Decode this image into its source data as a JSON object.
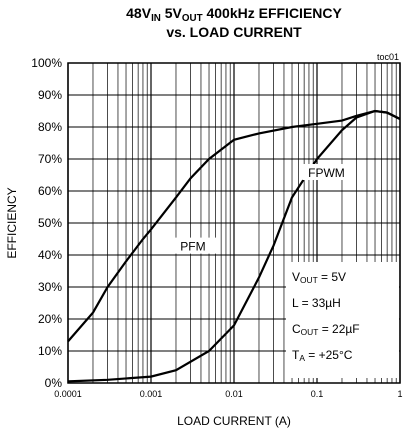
{
  "chart_data": {
    "type": "line",
    "title_lines": [
      [
        {
          "text": "48V"
        },
        {
          "text": "IN",
          "sub": true
        },
        {
          "text": " 5V"
        },
        {
          "text": "OUT",
          "sub": true
        },
        {
          "text": " 400kHz EFFICIENCY"
        }
      ],
      [
        {
          "text": "vs. LOAD CURRENT"
        }
      ]
    ],
    "tag": "toc01",
    "xlabel": "LOAD CURRENT (A)",
    "ylabel": "EFFICIENCY",
    "xscale": "log",
    "xlim": [
      0.0001,
      1
    ],
    "xticks": [
      0.0001,
      0.001,
      0.01,
      0.1,
      1
    ],
    "xminor": [
      0.0002,
      0.0003,
      0.0004,
      0.0005,
      0.0006,
      0.0007,
      0.0008,
      0.0009,
      0.002,
      0.003,
      0.004,
      0.005,
      0.006,
      0.007,
      0.008,
      0.009,
      0.02,
      0.03,
      0.04,
      0.05,
      0.06,
      0.07,
      0.08,
      0.09,
      0.2,
      0.3,
      0.4,
      0.5,
      0.6,
      0.7,
      0.8,
      0.9
    ],
    "ylim": [
      0,
      100
    ],
    "yticks": [
      {
        "value": 0,
        "label": "0%"
      },
      {
        "value": 10,
        "label": "10%"
      },
      {
        "value": 20,
        "label": "20%"
      },
      {
        "value": 30,
        "label": "30%"
      },
      {
        "value": 40,
        "label": "40%"
      },
      {
        "value": 50,
        "label": "50%"
      },
      {
        "value": 60,
        "label": "60%"
      },
      {
        "value": 70,
        "label": "70%"
      },
      {
        "value": 80,
        "label": "80%"
      },
      {
        "value": 90,
        "label": "90%"
      },
      {
        "value": 100,
        "label": "100%"
      }
    ],
    "grid": true,
    "series": [
      {
        "name": "PFM",
        "color": "#000000",
        "x": [
          0.0001,
          0.0002,
          0.0003,
          0.0005,
          0.0008,
          0.001,
          0.002,
          0.003,
          0.005,
          0.01,
          0.02,
          0.05,
          0.1,
          0.2,
          0.3,
          0.5,
          0.7,
          1
        ],
        "values": [
          13,
          22,
          30,
          38,
          45,
          48,
          58,
          64,
          70,
          76,
          78,
          80,
          81,
          82,
          83.5,
          85,
          84.5,
          82.5
        ]
      },
      {
        "name": "FPWM",
        "color": "#000000",
        "x": [
          0.0001,
          0.0003,
          0.001,
          0.002,
          0.005,
          0.01,
          0.02,
          0.03,
          0.05,
          0.1,
          0.2,
          0.3,
          0.5,
          0.7,
          1
        ],
        "values": [
          0.5,
          1,
          2,
          4,
          10,
          18,
          33,
          43,
          58,
          70,
          79,
          83,
          85,
          84.5,
          82.5
        ]
      }
    ],
    "conditions": [
      [
        {
          "text": "V"
        },
        {
          "text": "OUT",
          "sub": true
        },
        {
          "text": " = 5V"
        }
      ],
      [
        {
          "text": "L = 33µH"
        }
      ],
      [
        {
          "text": "C"
        },
        {
          "text": "OUT",
          "sub": true
        },
        {
          "text": " = 22µF"
        }
      ],
      [
        {
          "text": "T"
        },
        {
          "text": "A",
          "sub": true
        },
        {
          "text": " = +25°C"
        }
      ]
    ]
  }
}
